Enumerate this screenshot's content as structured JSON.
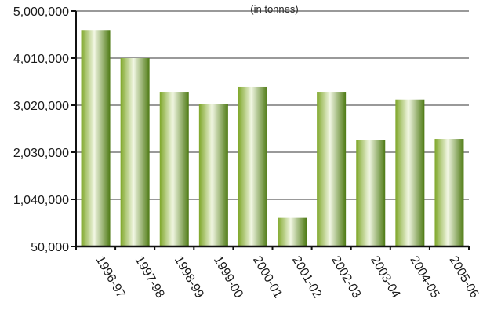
{
  "chart_data": {
    "type": "bar",
    "subtitle": "(in tonnes)",
    "categories": [
      "1996-97",
      "1997-98",
      "1998-99",
      "1999-00",
      "2000-01",
      "2001-02",
      "2002-03",
      "2003-04",
      "2004-05",
      "2005-06"
    ],
    "values": [
      4600000,
      4010000,
      3300000,
      3050000,
      3400000,
      650000,
      3300000,
      2280000,
      3140000,
      2310000
    ],
    "ylim": [
      50000,
      5000000
    ],
    "yticks": [
      50000,
      1040000,
      2030000,
      3020000,
      4010000,
      5000000
    ],
    "ytick_labels": [
      "50,000",
      "1,040,000",
      "2,030,000",
      "3,020,000",
      "4,010,000",
      "5,000,000"
    ],
    "grid": true,
    "bar_color": "#7fa72a",
    "bar_highlight": "#f2f7e4",
    "bar_shadow": "#4e7a14"
  }
}
